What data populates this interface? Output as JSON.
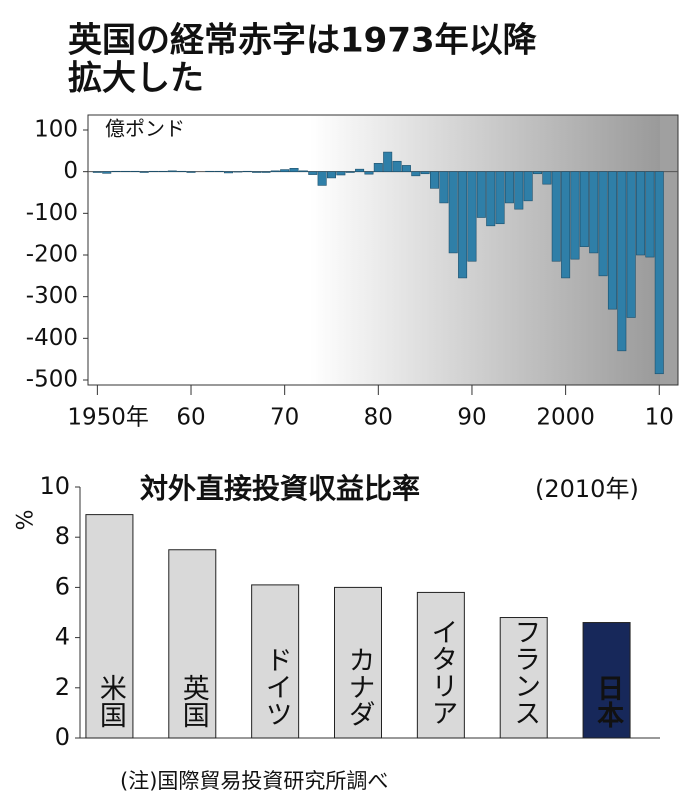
{
  "title": [
    "英国の経常赤字は1973年以降",
    "拡大した"
  ],
  "chart_data": [
    {
      "type": "bar",
      "y_label": "億ポンド",
      "color": "#2f7fa8",
      "x": [
        1950,
        1951,
        1952,
        1953,
        1954,
        1955,
        1956,
        1957,
        1958,
        1959,
        1960,
        1961,
        1962,
        1963,
        1964,
        1965,
        1966,
        1967,
        1968,
        1969,
        1970,
        1971,
        1972,
        1973,
        1974,
        1975,
        1976,
        1977,
        1978,
        1979,
        1980,
        1981,
        1982,
        1983,
        1984,
        1985,
        1986,
        1987,
        1988,
        1989,
        1990,
        1991,
        1992,
        1993,
        1994,
        1995,
        1996,
        1997,
        1998,
        1999,
        2000,
        2001,
        2002,
        2003,
        2004,
        2005,
        2006,
        2007,
        2008,
        2009,
        2010
      ],
      "values": [
        -2,
        -4,
        1,
        1,
        1,
        -2,
        1,
        1,
        2,
        1,
        -2,
        0,
        1,
        1,
        -3,
        -1,
        1,
        -2,
        -2,
        2,
        5,
        8,
        2,
        -7,
        -33,
        -15,
        -8,
        -2,
        6,
        -6,
        20,
        47,
        25,
        15,
        -10,
        -5,
        -40,
        -75,
        -195,
        -255,
        -215,
        -110,
        -130,
        -125,
        -75,
        -90,
        -70,
        -5,
        -30,
        -215,
        -255,
        -210,
        -180,
        -195,
        -250,
        -330,
        -430,
        -350,
        -200,
        -205,
        -485
      ],
      "xlim": [
        1949,
        2012
      ],
      "xticks": [
        {
          "value": 1950,
          "label": "1950年"
        },
        {
          "value": 1960,
          "label": "60"
        },
        {
          "value": 1970,
          "label": "70"
        },
        {
          "value": 1980,
          "label": "80"
        },
        {
          "value": 1990,
          "label": "90"
        },
        2000,
        {
          "value": 2010,
          "label": "10"
        }
      ],
      "ylim": [
        -500,
        100
      ],
      "yticks": [
        100,
        0,
        -100,
        -200,
        -300,
        -400,
        -500
      ]
    },
    {
      "type": "bar",
      "title": "対外直接投資収益比率",
      "subtitle": "(2010年)",
      "y_label": "%",
      "categories": [
        "米国",
        "英国",
        "ドイツ",
        "カナダ",
        "イタリア",
        "フランス",
        "日本"
      ],
      "values": [
        8.9,
        7.5,
        6.1,
        6.0,
        5.8,
        4.8,
        4.6
      ],
      "colors": [
        "#d9d9d9",
        "#d9d9d9",
        "#d9d9d9",
        "#d9d9d9",
        "#d9d9d9",
        "#d9d9d9",
        "#17285a"
      ],
      "ylim": [
        0,
        10
      ],
      "yticks": [
        0,
        2,
        4,
        6,
        8,
        10
      ]
    }
  ],
  "note": "(注)国際貿易投資研究所調べ"
}
